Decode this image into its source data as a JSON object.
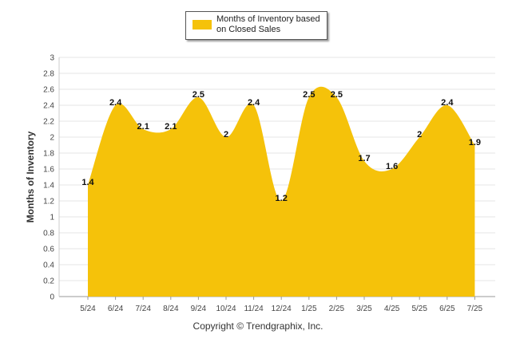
{
  "chart_data": {
    "type": "area",
    "categories": [
      "5/24",
      "6/24",
      "7/24",
      "8/24",
      "9/24",
      "10/24",
      "11/24",
      "12/24",
      "1/25",
      "2/25",
      "3/25",
      "4/25",
      "5/25",
      "6/25",
      "7/25"
    ],
    "series": [
      {
        "name": "Months of Inventory based on Closed Sales",
        "values": [
          1.4,
          2.4,
          2.1,
          2.1,
          2.5,
          2.0,
          2.4,
          1.2,
          2.5,
          2.5,
          1.7,
          1.6,
          2.0,
          2.4,
          1.9
        ]
      }
    ],
    "data_labels": [
      "1.4",
      "2.4",
      "2.1",
      "2.1",
      "2.5",
      "2",
      "2.4",
      "1.2",
      "2.5",
      "2.5",
      "1.7",
      "1.6",
      "2",
      "2.4",
      "1.9"
    ],
    "ylabel": "Months of Inventory",
    "xlabel": "",
    "ylim": [
      0,
      3
    ],
    "yticks": [
      "0",
      "0.2",
      "0.4",
      "0.6",
      "0.8",
      "1",
      "1.2",
      "1.4",
      "1.6",
      "1.8",
      "2",
      "2.2",
      "2.4",
      "2.6",
      "2.8",
      "3"
    ],
    "grid": true,
    "legend_position": "top-center",
    "color": "#F5C20A"
  },
  "legend": {
    "label": "Months of Inventory based on Closed Sales"
  },
  "footer": {
    "text": "Copyright © Trendgraphix, Inc."
  }
}
